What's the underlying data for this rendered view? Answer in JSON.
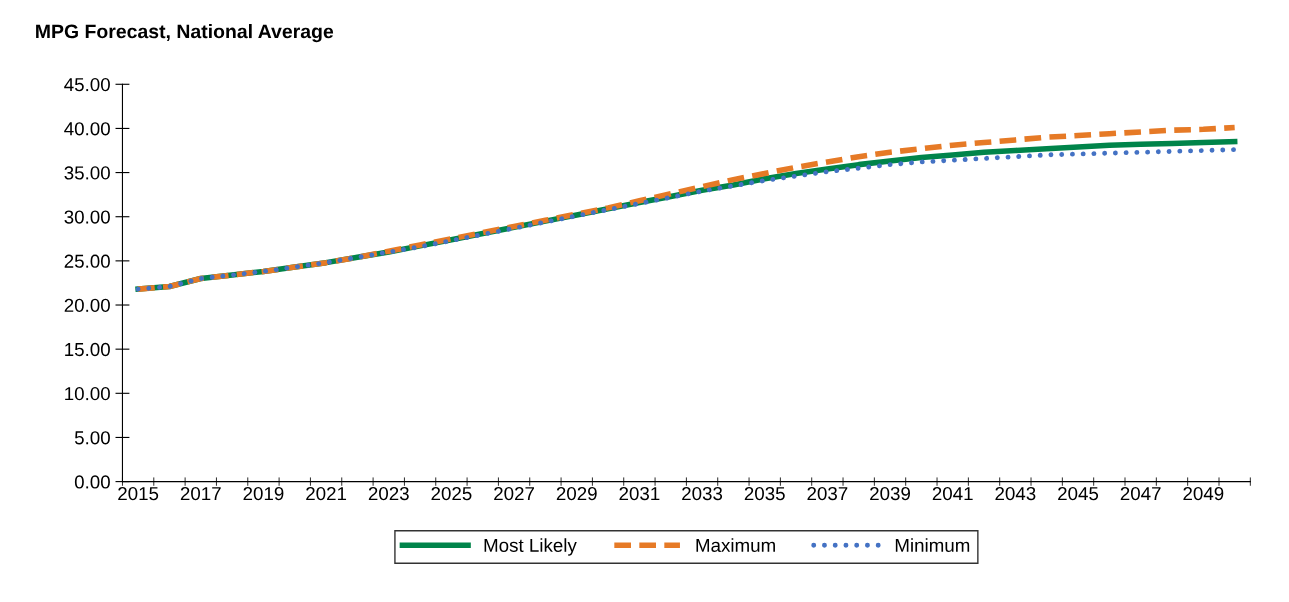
{
  "chart_data": {
    "type": "line",
    "title": "MPG Forecast, National Average",
    "categories": [
      "2015",
      null,
      "2017",
      null,
      "2019",
      null,
      "2021",
      null,
      "2023",
      null,
      "2025",
      null,
      "2027",
      null,
      "2029",
      null,
      "2031",
      null,
      "2033",
      null,
      "2035",
      null,
      "2037",
      null,
      "2039",
      null,
      "2041",
      null,
      "2043",
      null,
      "2045",
      null,
      "2047",
      null,
      "2049",
      null
    ],
    "series": [
      {
        "name": "Most Likely",
        "color": "#00844a",
        "line_style": "solid",
        "values": [
          21.8,
          22.1,
          23.0,
          23.4,
          23.8,
          24.3,
          24.8,
          25.4,
          26.0,
          26.7,
          27.4,
          28.1,
          28.8,
          29.5,
          30.2,
          30.9,
          31.6,
          32.3,
          33.0,
          33.6,
          34.3,
          34.9,
          35.4,
          35.9,
          36.3,
          36.7,
          37.0,
          37.3,
          37.5,
          37.7,
          37.9,
          38.1,
          38.2,
          38.3,
          38.4,
          38.5
        ]
      },
      {
        "name": "Maximum",
        "color": "#e67a26",
        "line_style": "dashed",
        "values": [
          21.8,
          22.1,
          23.0,
          23.4,
          23.8,
          24.3,
          24.8,
          25.4,
          26.1,
          26.8,
          27.5,
          28.2,
          28.9,
          29.6,
          30.3,
          31.0,
          31.8,
          32.6,
          33.4,
          34.2,
          34.9,
          35.6,
          36.2,
          36.8,
          37.3,
          37.7,
          38.1,
          38.4,
          38.7,
          39.0,
          39.2,
          39.4,
          39.6,
          39.8,
          39.9,
          40.1
        ]
      },
      {
        "name": "Minimum",
        "color": "#4472c4",
        "line_style": "dotted",
        "values": [
          21.8,
          22.1,
          23.0,
          23.4,
          23.8,
          24.3,
          24.8,
          25.4,
          26.0,
          26.6,
          27.3,
          28.0,
          28.7,
          29.4,
          30.1,
          30.8,
          31.5,
          32.2,
          32.9,
          33.5,
          34.1,
          34.6,
          35.1,
          35.5,
          35.9,
          36.2,
          36.4,
          36.6,
          36.8,
          37.0,
          37.1,
          37.2,
          37.3,
          37.4,
          37.5,
          37.6
        ]
      }
    ],
    "ylim": [
      0,
      45
    ],
    "yticks": [
      {
        "value": 0,
        "label": "0.00"
      },
      {
        "value": 5,
        "label": "5.00"
      },
      {
        "value": 10,
        "label": "10.00"
      },
      {
        "value": 15,
        "label": "15.00"
      },
      {
        "value": 20,
        "label": "20.00"
      },
      {
        "value": 25,
        "label": "25.00"
      },
      {
        "value": 30,
        "label": "30.00"
      },
      {
        "value": 35,
        "label": "35.00"
      },
      {
        "value": 40,
        "label": "40.00"
      },
      {
        "value": 45,
        "label": "45.00"
      }
    ],
    "grid": false,
    "legend": "bottom",
    "marker": "none"
  }
}
